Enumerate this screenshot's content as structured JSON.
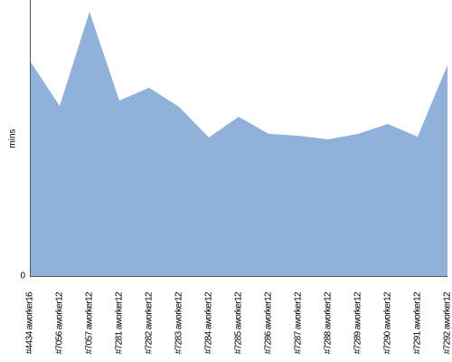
{
  "chart_data": {
    "type": "area",
    "y_label": "mins",
    "categories": [
      "#4434 aworker16",
      "#7056 aworker12",
      "#7057 aworker12",
      "#7281 aworker12",
      "#7282 aworker12",
      "#7283 aworker12",
      "#7284 aworker12",
      "#7285 aworker12",
      "#7286 aworker12",
      "#7287 aworker12",
      "#7288 aworker12",
      "#7289 aworker12",
      "#7290 aworker12",
      "#7291 aworker12",
      "#7292 aworker12"
    ],
    "values": [
      78.0,
      61.6,
      95.7,
      63.6,
      68.2,
      61.3,
      50.2,
      57.7,
      51.5,
      50.8,
      49.5,
      51.5,
      55.1,
      50.5,
      76.4
    ],
    "color": "#8fb1da",
    "ylim": [
      0,
      100
    ],
    "yticks": [
      0
    ],
    "grid": false
  }
}
